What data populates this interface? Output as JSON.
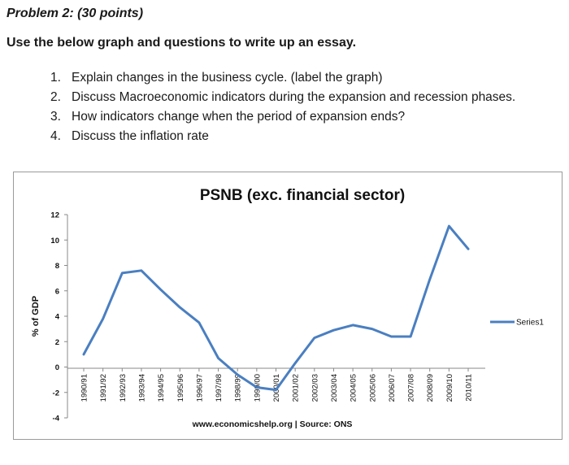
{
  "document": {
    "title": "Problem 2: (30 points)",
    "instruction": "Use the below graph and questions to write up an essay.",
    "questions": [
      {
        "number": "1.",
        "text": "Explain changes in the business cycle. (label the graph)"
      },
      {
        "number": "2.",
        "text": "Discuss Macroeconomic indicators during the expansion and recession phases."
      },
      {
        "number": "3.",
        "text": "How indicators change when the period of expansion ends?"
      },
      {
        "number": "4.",
        "text": "Discuss the inflation rate"
      }
    ]
  },
  "chart_data": {
    "type": "line",
    "title": "PSNB (exc. financial sector)",
    "ylabel": "% of GDP",
    "xlabel": "",
    "source": "www.economicshelp.org | Source: ONS",
    "categories": [
      "1990/91",
      "1991/92",
      "1992/93",
      "1993/94",
      "1994/95",
      "1995/96",
      "1996/97",
      "1997/98",
      "1998/99",
      "1999/00",
      "2000/01",
      "2001/02",
      "2002/03",
      "2003/04",
      "2004/05",
      "2005/06",
      "2006/07",
      "2007/08",
      "2008/09",
      "2009/10",
      "2010/11"
    ],
    "series": [
      {
        "name": "Series1",
        "color": "#4a7fc1",
        "values": [
          1.0,
          3.8,
          7.4,
          7.6,
          6.1,
          4.7,
          3.5,
          0.7,
          -0.6,
          -1.6,
          -1.8,
          0.3,
          2.3,
          2.9,
          3.3,
          3.0,
          2.4,
          2.4,
          6.9,
          11.1,
          9.3
        ]
      }
    ],
    "yticks": [
      -4,
      -2,
      0,
      2,
      4,
      6,
      8,
      10,
      12
    ],
    "ylim": [
      -4,
      12
    ],
    "grid": false,
    "legend": "right"
  }
}
